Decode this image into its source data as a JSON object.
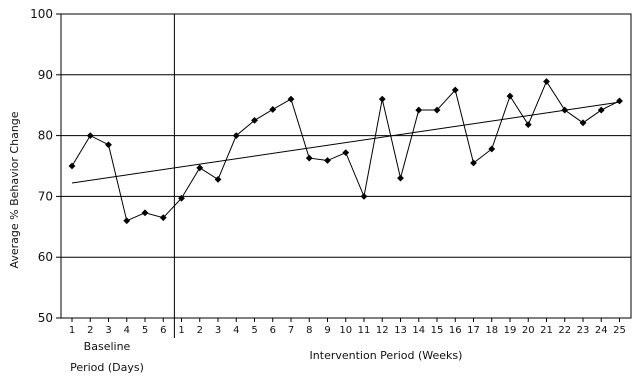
{
  "chart_data": {
    "type": "line",
    "title": "",
    "ylabel": "Average % Behavior Change",
    "ylim": [
      50,
      100
    ],
    "yticks": [
      50,
      60,
      70,
      80,
      90,
      100
    ],
    "grid": "horizontal",
    "phases": [
      {
        "label_lines": [
          "Baseline",
          "Period (Days)"
        ],
        "tick_labels": [
          "1",
          "2",
          "3",
          "4",
          "5",
          "6"
        ],
        "values": [
          75,
          80,
          78.5,
          66,
          67.3,
          66.5
        ]
      },
      {
        "label_lines": [
          "Intervention Period (Weeks)"
        ],
        "tick_labels": [
          "1",
          "2",
          "3",
          "4",
          "5",
          "6",
          "7",
          "8",
          "9",
          "10",
          "11",
          "12",
          "13",
          "14",
          "15",
          "16",
          "17",
          "18",
          "19",
          "20",
          "21",
          "22",
          "23",
          "24",
          "25"
        ],
        "values": [
          69.7,
          74.7,
          72.8,
          80,
          82.5,
          84.3,
          86,
          76.3,
          75.9,
          77.2,
          70,
          86,
          73,
          84.2,
          84.2,
          87.5,
          75.5,
          77.8,
          86.5,
          81.8,
          88.9,
          84.2,
          82.1,
          84.2,
          85.7
        ]
      }
    ],
    "trend_line": {
      "start": 72.2,
      "end": 85.5
    },
    "series_color": "#000000"
  }
}
